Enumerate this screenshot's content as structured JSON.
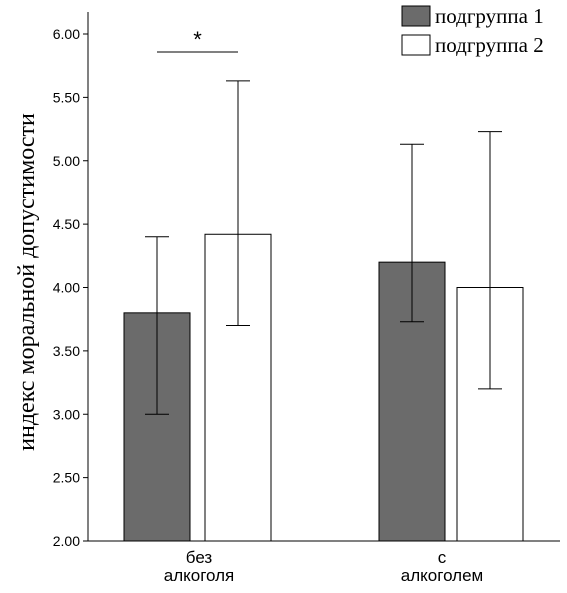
{
  "chart_data": {
    "type": "bar",
    "ylabel": "индекс моральной допустимости",
    "ylim": [
      2.0,
      6.0
    ],
    "yticks": [
      "2.00",
      "2.50",
      "3.00",
      "3.50",
      "4.00",
      "4.50",
      "5.00",
      "5.50",
      "6.00"
    ],
    "categories": [
      [
        "без",
        "алкоголя"
      ],
      [
        "с",
        "алкоголем"
      ]
    ],
    "series": [
      {
        "name": "подгруппа 1",
        "color": "#6b6b6b",
        "values": [
          3.8,
          4.2
        ],
        "err_low": [
          3.0,
          3.73
        ],
        "err_high": [
          4.4,
          5.13
        ]
      },
      {
        "name": "подгруппа 2",
        "color": "#ffffff",
        "values": [
          4.42,
          4.0
        ],
        "err_low": [
          3.7,
          3.2
        ],
        "err_high": [
          5.63,
          5.23
        ]
      }
    ],
    "significance": {
      "category_index": 0,
      "mark": "*"
    },
    "legend": "top-right"
  }
}
